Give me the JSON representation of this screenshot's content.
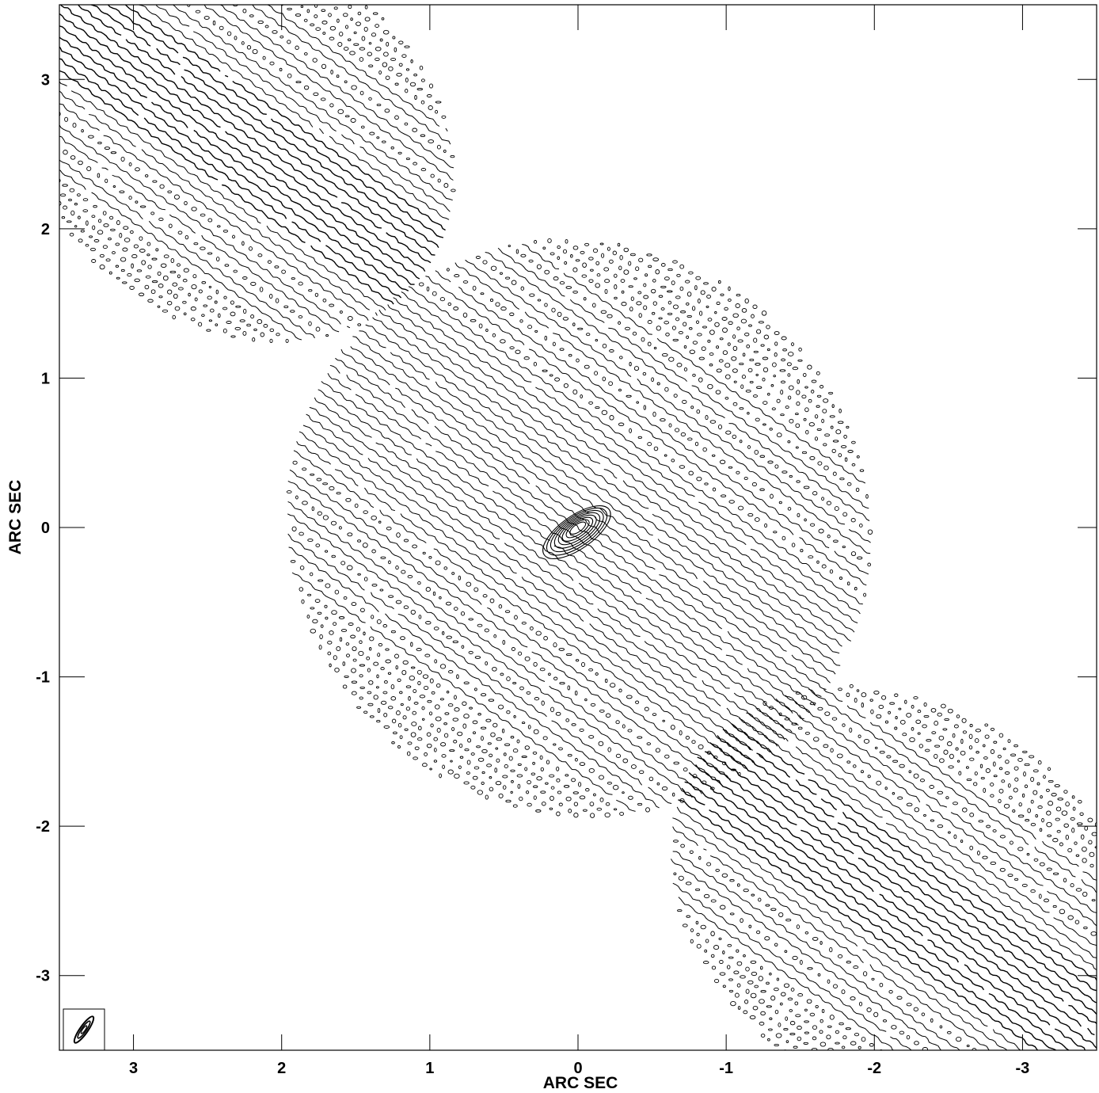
{
  "chart_data": {
    "type": "contour",
    "xlabel": "ARC SEC",
    "ylabel": "ARC SEC",
    "xlim": [
      3.5,
      -3.5
    ],
    "ylim": [
      -3.5,
      3.5
    ],
    "x_ticks": [
      3,
      2,
      1,
      0,
      -1,
      -2,
      -3
    ],
    "x_tick_labels": [
      "3",
      "2",
      "1",
      "0",
      "-1",
      "-2",
      "-3"
    ],
    "y_ticks": [
      3,
      2,
      1,
      0,
      -1,
      -2,
      -3
    ],
    "y_tick_labels": [
      "3",
      "2",
      "1",
      "0",
      "-1",
      "-2",
      "-3"
    ],
    "peak": {
      "x": 0,
      "y": 0
    },
    "fringe_position_angle_deg": 55,
    "beam_inset": "bottom-left",
    "grid": false,
    "regions": [
      {
        "name": "central",
        "center": [
          0,
          0
        ],
        "semi_major": 2.0,
        "semi_minor": 1.9
      },
      {
        "name": "upper-left",
        "center": [
          2.3,
          2.6
        ],
        "semi_major": 1.55,
        "semi_minor": 1.25
      },
      {
        "name": "lower-right",
        "center": [
          -2.2,
          -2.5
        ],
        "semi_major": 1.7,
        "semi_minor": 1.3
      }
    ]
  }
}
